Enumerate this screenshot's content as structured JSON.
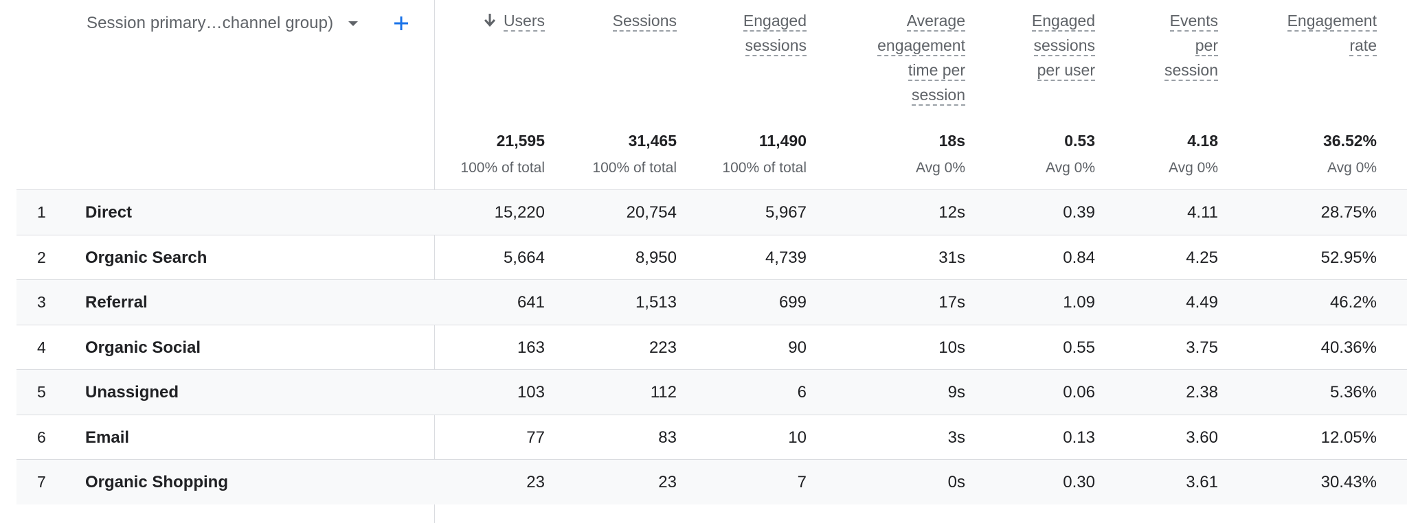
{
  "dimension": {
    "label": "Session primary…channel group)",
    "add_icon": "plus-icon",
    "dropdown_icon": "caret-down-icon"
  },
  "columns": [
    {
      "key": "users",
      "label_lines": [
        "Users"
      ],
      "sorted": true,
      "sort_icon": "arrow-down-icon",
      "total": "21,595",
      "total_sub": "100% of total"
    },
    {
      "key": "sessions",
      "label_lines": [
        "Sessions"
      ],
      "sorted": false,
      "total": "31,465",
      "total_sub": "100% of total"
    },
    {
      "key": "engaged_sessions",
      "label_lines": [
        "Engaged",
        "sessions"
      ],
      "sorted": false,
      "total": "11,490",
      "total_sub": "100% of total"
    },
    {
      "key": "avg_engagement_time",
      "label_lines": [
        "Average",
        "engagement",
        "time per",
        "session"
      ],
      "sorted": false,
      "total": "18s",
      "total_sub": "Avg 0%"
    },
    {
      "key": "engaged_sessions_per_user",
      "label_lines": [
        "Engaged",
        "sessions",
        "per user"
      ],
      "sorted": false,
      "total": "0.53",
      "total_sub": "Avg 0%"
    },
    {
      "key": "events_per_session",
      "label_lines": [
        "Events",
        "per",
        "session"
      ],
      "sorted": false,
      "total": "4.18",
      "total_sub": "Avg 0%"
    },
    {
      "key": "engagement_rate",
      "label_lines": [
        "Engagement",
        "rate"
      ],
      "sorted": false,
      "total": "36.52%",
      "total_sub": "Avg 0%"
    }
  ],
  "rows": [
    {
      "index": "1",
      "name": "Direct",
      "values": [
        "15,220",
        "20,754",
        "5,967",
        "12s",
        "0.39",
        "4.11",
        "28.75%"
      ]
    },
    {
      "index": "2",
      "name": "Organic Search",
      "values": [
        "5,664",
        "8,950",
        "4,739",
        "31s",
        "0.84",
        "4.25",
        "52.95%"
      ]
    },
    {
      "index": "3",
      "name": "Referral",
      "values": [
        "641",
        "1,513",
        "699",
        "17s",
        "1.09",
        "4.49",
        "46.2%"
      ]
    },
    {
      "index": "4",
      "name": "Organic Social",
      "values": [
        "163",
        "223",
        "90",
        "10s",
        "0.55",
        "3.75",
        "40.36%"
      ]
    },
    {
      "index": "5",
      "name": "Unassigned",
      "values": [
        "103",
        "112",
        "6",
        "9s",
        "0.06",
        "2.38",
        "5.36%"
      ]
    },
    {
      "index": "6",
      "name": "Email",
      "values": [
        "77",
        "83",
        "10",
        "3s",
        "0.13",
        "3.60",
        "12.05%"
      ]
    },
    {
      "index": "7",
      "name": "Organic Shopping",
      "values": [
        "23",
        "23",
        "7",
        "0s",
        "0.30",
        "3.61",
        "30.43%"
      ]
    }
  ],
  "colors": {
    "accent": "#1a73e8",
    "text": "#202124",
    "muted": "#5f6368",
    "row_shade": "#f8f9fa",
    "border": "#dadce0"
  }
}
